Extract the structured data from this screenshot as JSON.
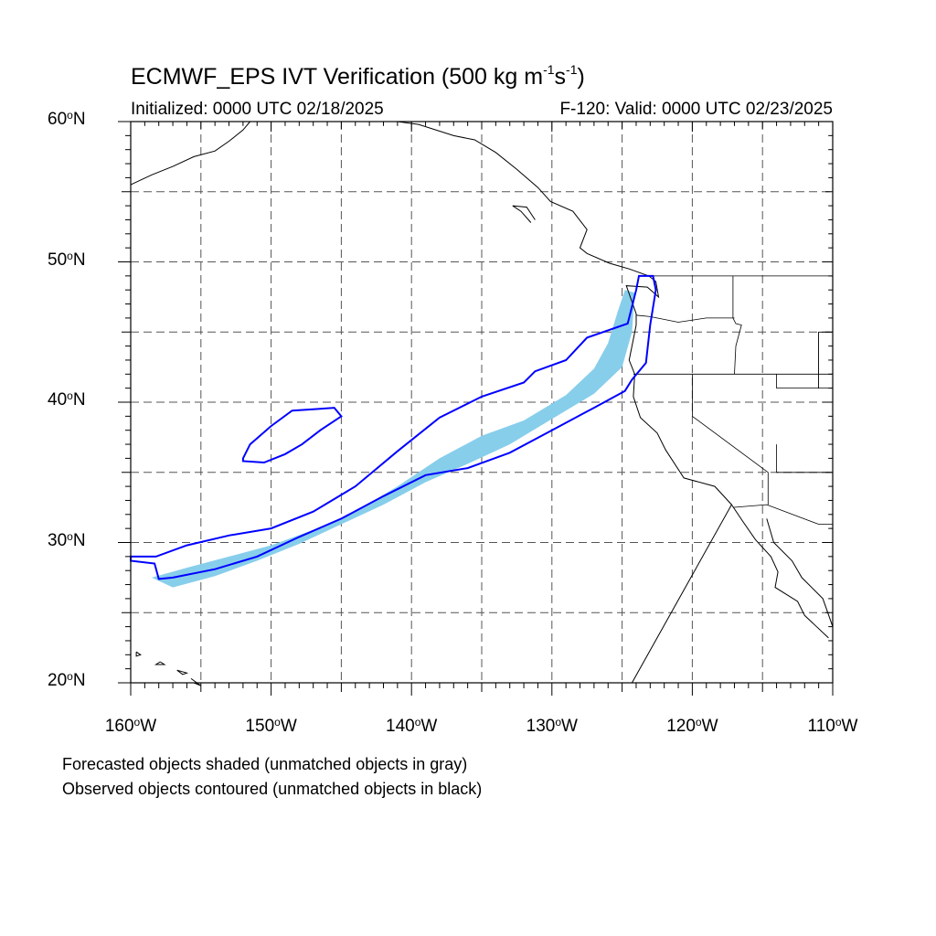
{
  "header": {
    "title_main": "ECMWF_EPS IVT Verification (500 kg m",
    "title_sup1": "-1",
    "title_mid": "s",
    "title_sup2": "-1",
    "title_end": ")",
    "initialized": "Initialized: 0000 UTC 02/18/2025",
    "valid": "F-120: Valid: 0000 UTC 02/23/2025"
  },
  "map": {
    "lon_range": [
      -160,
      -110
    ],
    "lat_range": [
      20,
      60
    ],
    "lat_labels": [
      {
        "value": 60,
        "text": "60",
        "suffix": "N"
      },
      {
        "value": 50,
        "text": "50",
        "suffix": "N"
      },
      {
        "value": 40,
        "text": "40",
        "suffix": "N"
      },
      {
        "value": 30,
        "text": "30",
        "suffix": "N"
      },
      {
        "value": 20,
        "text": "20",
        "suffix": "N"
      }
    ],
    "lon_labels": [
      {
        "value": -160,
        "text": "160",
        "suffix": "W"
      },
      {
        "value": -150,
        "text": "150",
        "suffix": "W"
      },
      {
        "value": -140,
        "text": "140",
        "suffix": "W"
      },
      {
        "value": -130,
        "text": "130",
        "suffix": "W"
      },
      {
        "value": -120,
        "text": "120",
        "suffix": "W"
      },
      {
        "value": -110,
        "text": "110",
        "suffix": "W"
      }
    ],
    "gridline_spacing_deg": 5,
    "colors": {
      "forecast_fill": "#87ceeb",
      "observed_contour": "#0000ff",
      "coastline": "#000000",
      "grid": "#555555"
    },
    "forecast_object": [
      [
        -158.5,
        27.5
      ],
      [
        -156,
        28.2
      ],
      [
        -153,
        29.0
      ],
      [
        -150,
        29.8
      ],
      [
        -147,
        30.9
      ],
      [
        -144,
        32.2
      ],
      [
        -141,
        34.0
      ],
      [
        -138,
        36.0
      ],
      [
        -135,
        37.6
      ],
      [
        -132,
        38.7
      ],
      [
        -129,
        40.5
      ],
      [
        -127,
        42.4
      ],
      [
        -126,
        44.2
      ],
      [
        -125.3,
        46.5
      ],
      [
        -124.8,
        48.0
      ],
      [
        -124.1,
        47.8
      ],
      [
        -124.3,
        45.0
      ],
      [
        -125.0,
        42.5
      ],
      [
        -127,
        40.6
      ],
      [
        -130,
        38.8
      ],
      [
        -133,
        37.0
      ],
      [
        -136,
        35.6
      ],
      [
        -139,
        34.3
      ],
      [
        -142,
        32.7
      ],
      [
        -145,
        31.3
      ],
      [
        -148,
        29.9
      ],
      [
        -151,
        28.7
      ],
      [
        -154,
        27.6
      ],
      [
        -157,
        26.8
      ]
    ],
    "observed_objects": [
      [
        [
          -160,
          29.0
        ],
        [
          -158.2,
          29.0
        ],
        [
          -156,
          29.8
        ],
        [
          -153,
          30.5
        ],
        [
          -150,
          31.0
        ],
        [
          -147,
          32.2
        ],
        [
          -144,
          34.0
        ],
        [
          -141,
          36.5
        ],
        [
          -138,
          38.9
        ],
        [
          -135,
          40.4
        ],
        [
          -132,
          41.4
        ],
        [
          -131.2,
          42.2
        ],
        [
          -129,
          43.0
        ],
        [
          -127.5,
          44.6
        ],
        [
          -124.6,
          45.6
        ],
        [
          -124.0,
          48.0
        ],
        [
          -123.8,
          49.0
        ],
        [
          -122.8,
          49.0
        ],
        [
          -122.6,
          48.0
        ],
        [
          -123.0,
          45.5
        ],
        [
          -123.3,
          42.8
        ],
        [
          -124.3,
          41.6
        ],
        [
          -124.8,
          40.8
        ],
        [
          -127,
          39.6
        ],
        [
          -130,
          38.0
        ],
        [
          -133,
          36.4
        ],
        [
          -136,
          35.3
        ],
        [
          -139,
          34.8
        ],
        [
          -142,
          33.3
        ],
        [
          -145,
          31.7
        ],
        [
          -148,
          30.4
        ],
        [
          -151,
          29.0
        ],
        [
          -154,
          28.1
        ],
        [
          -157,
          27.5
        ],
        [
          -158.0,
          27.4
        ],
        [
          -158.3,
          28.5
        ],
        [
          -160,
          28.7
        ]
      ],
      [
        [
          -152.0,
          36.0
        ],
        [
          -151.5,
          37.0
        ],
        [
          -150,
          38.3
        ],
        [
          -148.5,
          39.4
        ],
        [
          -147.0,
          39.5
        ],
        [
          -145.5,
          39.6
        ],
        [
          -145.0,
          39.0
        ],
        [
          -146.5,
          38.0
        ],
        [
          -147.8,
          37.0
        ],
        [
          -149.0,
          36.3
        ],
        [
          -150.5,
          35.7
        ],
        [
          -152.0,
          35.8
        ]
      ]
    ],
    "coastlines": [
      [
        [
          -124.3,
          20.0
        ],
        [
          -117.2,
          32.7
        ],
        [
          -118.4,
          34.0
        ],
        [
          -120.6,
          34.6
        ],
        [
          -121.9,
          36.6
        ],
        [
          -122.5,
          37.8
        ],
        [
          -123.7,
          38.9
        ],
        [
          -124.2,
          40.4
        ],
        [
          -124.1,
          42.0
        ],
        [
          -124.5,
          43.0
        ],
        [
          -124.0,
          45.5
        ],
        [
          -124.0,
          46.3
        ],
        [
          -124.7,
          48.3
        ],
        [
          -123.2,
          48.2
        ],
        [
          -122.4,
          47.5
        ],
        [
          -122.6,
          48.6
        ],
        [
          -123.1,
          49.0
        ],
        [
          -124.5,
          49.5
        ],
        [
          -125.9,
          49.9
        ],
        [
          -127.5,
          50.6
        ],
        [
          -128.0,
          51.0
        ],
        [
          -127.5,
          52.3
        ],
        [
          -128.5,
          53.6
        ],
        [
          -130.1,
          54.3
        ],
        [
          -131.0,
          55.3
        ],
        [
          -132.5,
          56.6
        ],
        [
          -134.0,
          57.8
        ],
        [
          -135.5,
          58.7
        ],
        [
          -137.0,
          59.0
        ],
        [
          -139.5,
          59.8
        ],
        [
          -141,
          60
        ]
      ],
      [
        [
          -131.5,
          52.8
        ],
        [
          -132.2,
          53.6
        ],
        [
          -132.8,
          54.0
        ],
        [
          -131.8,
          53.9
        ],
        [
          -131.2,
          53.0
        ]
      ],
      [
        [
          -114.7,
          31.7
        ],
        [
          -114.2,
          30.0
        ],
        [
          -112.9,
          28.7
        ],
        [
          -112.2,
          27.5
        ],
        [
          -110.7,
          26.0
        ],
        [
          -110,
          24.0
        ]
      ],
      [
        [
          -117.2,
          32.7
        ],
        [
          -116.4,
          31.5
        ],
        [
          -115.5,
          30.2
        ],
        [
          -114.4,
          29.0
        ],
        [
          -113.9,
          27.9
        ],
        [
          -114.1,
          26.8
        ],
        [
          -112.5,
          25.8
        ],
        [
          -112.0,
          24.8
        ],
        [
          -110.3,
          23.2
        ]
      ],
      [
        [
          -160,
          55.5
        ],
        [
          -158.5,
          56.2
        ],
        [
          -157,
          56.8
        ],
        [
          -155.5,
          57.5
        ],
        [
          -154,
          57.9
        ],
        [
          -153.0,
          58.6
        ],
        [
          -152.0,
          59.4
        ],
        [
          -151.5,
          60
        ]
      ],
      [
        [
          -155.5,
          20.0
        ],
        [
          -155.0,
          19.8
        ],
        [
          -155.7,
          20.3
        ]
      ],
      [
        [
          -157.9,
          21.5
        ],
        [
          -157.6,
          21.3
        ],
        [
          -158.2,
          21.3
        ],
        [
          -157.9,
          21.5
        ]
      ],
      [
        [
          -156.7,
          20.9
        ],
        [
          -156.0,
          20.7
        ],
        [
          -156.3,
          20.6
        ],
        [
          -156.7,
          20.9
        ]
      ],
      [
        [
          -159.6,
          22.2
        ],
        [
          -159.3,
          22.0
        ],
        [
          -159.6,
          21.9
        ],
        [
          -159.6,
          22.2
        ]
      ]
    ],
    "borders": [
      [
        [
          -123.3,
          49.0
        ],
        [
          -110,
          49.0
        ]
      ],
      [
        [
          -124.2,
          42.0
        ],
        [
          -110,
          42.0
        ]
      ],
      [
        [
          -120.0,
          42.0
        ],
        [
          -120.0,
          39.0
        ],
        [
          -114.6,
          35.0
        ],
        [
          -114.6,
          32.7
        ]
      ],
      [
        [
          -117.1,
          49.0
        ],
        [
          -117.1,
          46.0
        ],
        [
          -116.9,
          45.6
        ],
        [
          -116.5,
          45.5
        ],
        [
          -116.9,
          44.0
        ],
        [
          -117.0,
          42.0
        ]
      ],
      [
        [
          -124.0,
          46.2
        ],
        [
          -123.0,
          46.1
        ],
        [
          -121.0,
          45.7
        ],
        [
          -119.0,
          46.0
        ],
        [
          -117.0,
          46.0
        ]
      ],
      [
        [
          -111.0,
          45.0
        ],
        [
          -111.0,
          41.0
        ],
        [
          -114.0,
          41.0
        ],
        [
          -114.0,
          42.0
        ]
      ],
      [
        [
          -114.0,
          37.0
        ],
        [
          -114.0,
          35.0
        ],
        [
          -110.0,
          35.0
        ]
      ],
      [
        [
          -117.1,
          32.5
        ],
        [
          -114.7,
          32.7
        ],
        [
          -111.0,
          31.3
        ],
        [
          -110,
          31.3
        ]
      ],
      [
        [
          -110.0,
          45.0
        ],
        [
          -111.0,
          45.0
        ],
        [
          -111.0,
          41.0
        ],
        [
          -110,
          41.0
        ]
      ]
    ]
  },
  "footer": {
    "note_forecast": "Forecasted objects shaded (unmatched objects in gray)",
    "note_observed": "Observed objects contoured (unmatched objects in black)"
  }
}
